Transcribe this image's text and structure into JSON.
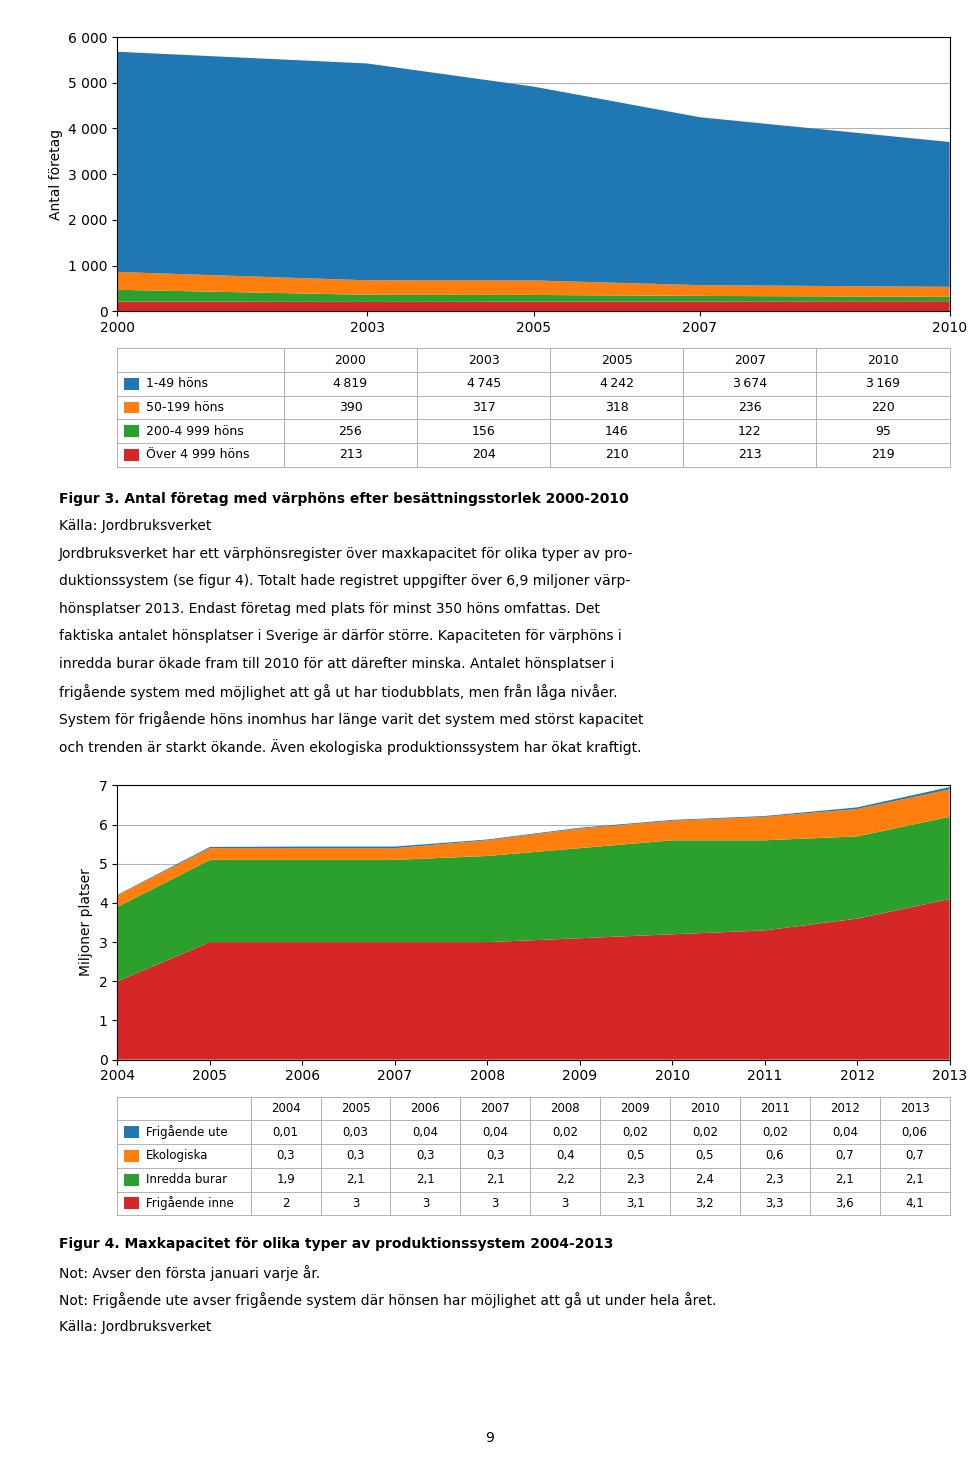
{
  "chart_data": [
    {
      "type": "area",
      "stacked": true,
      "grid": true,
      "data_labels": true,
      "y_label": "Antal företag",
      "x": [
        2000,
        2003,
        2005,
        2007,
        2010
      ],
      "xlim": [
        2000,
        2010
      ],
      "xticks": [
        2000,
        2003,
        2005,
        2007,
        2010
      ],
      "ylim": [
        0,
        6000
      ],
      "yticks": [
        0,
        {
          "value": 1000,
          "label": "1 000"
        },
        {
          "value": 2000,
          "label": "2 000"
        },
        {
          "value": 3000,
          "label": "3 000"
        },
        {
          "value": 4000,
          "label": "4 000"
        },
        {
          "value": 5000,
          "label": "5 000"
        },
        {
          "value": 6000,
          "label": "6 000"
        }
      ],
      "series": [
        {
          "name": "1-49 höns",
          "values": [
            4819,
            4745,
            4242,
            3674,
            3169
          ],
          "value_labels": [
            "4 819",
            "4 745",
            "4 242",
            "3 674",
            "3 169"
          ]
        },
        {
          "name": "50-199 höns",
          "values": [
            390,
            317,
            318,
            236,
            220
          ]
        },
        {
          "name": "200-4 999 höns",
          "values": [
            256,
            156,
            146,
            122,
            95
          ]
        },
        {
          "name": "Över 4 999 höns",
          "values": [
            213,
            204,
            210,
            213,
            219
          ]
        }
      ],
      "annotations": [
        "Figur 3. Antal företag med värphöns efter besättningsstorlek 2000-2010",
        "Källa: Jordbruksverket",
        "Jordbruksverket har ett värphönsregister över maxkapacitet för olika typer av pro-",
        "duktionssystem (se figur 4). Totalt hade registret uppgifter över 6,9 miljoner värp-",
        "hönsplatser 2013. Endast företag med plats för minst 350 höns omfattas. Det",
        "faktiska antalet hönsplatser i Sverige är därför större. Kapaciteten för värphöns i",
        "inredda burar ökade fram till 2010 för att därefter minska. Antalet hönsplatser i",
        "frigående system med möjlighet att gå ut har tiodubblats, men från låga nivåer.",
        "System för frigående höns inomhus har länge varit det system med störst kapacitet",
        "och trenden är starkt ökande. Även ekologiska produktionssystem har ökat kraftigt."
      ]
    },
    {
      "type": "area",
      "stacked": true,
      "grid": true,
      "data_labels": true,
      "y_label": "Miljoner platser",
      "x": [
        2004,
        2005,
        2006,
        2007,
        2008,
        2009,
        2010,
        2011,
        2012,
        2013
      ],
      "xlim": [
        2004,
        2013
      ],
      "xticks": [
        2004,
        2005,
        2006,
        2007,
        2008,
        2009,
        2010,
        2011,
        2012,
        2013
      ],
      "ylim": [
        0,
        7
      ],
      "yticks": [
        0,
        1,
        2,
        3,
        4,
        5,
        6,
        7
      ],
      "series": [
        {
          "name": "Frigående ute",
          "values": [
            0.01,
            0.03,
            0.04,
            0.04,
            0.02,
            0.02,
            0.02,
            0.02,
            0.04,
            0.06
          ],
          "value_labels": [
            "0,01",
            "0,03",
            "0,04",
            "0,04",
            "0,02",
            "0,02",
            "0,02",
            "0,02",
            "0,04",
            "0,06"
          ]
        },
        {
          "name": "Ekologiska",
          "values": [
            0.3,
            0.3,
            0.3,
            0.3,
            0.4,
            0.5,
            0.5,
            0.6,
            0.7,
            0.7
          ],
          "value_labels": [
            "0,3",
            "0,3",
            "0,3",
            "0,3",
            "0,4",
            "0,5",
            "0,5",
            "0,6",
            "0,7",
            "0,7"
          ]
        },
        {
          "name": "Inredda burar",
          "values": [
            1.9,
            2.1,
            2.1,
            2.1,
            2.2,
            2.3,
            2.4,
            2.3,
            2.1,
            2.1
          ],
          "value_labels": [
            "1,9",
            "2,1",
            "2,1",
            "2,1",
            "2,2",
            "2,3",
            "2,4",
            "2,3",
            "2,1",
            "2,1"
          ]
        },
        {
          "name": "Frigående inne",
          "values": [
            2.0,
            3.0,
            3.0,
            3.0,
            3.0,
            3.1,
            3.2,
            3.3,
            3.6,
            4.1
          ],
          "value_labels": [
            "2",
            "3",
            "3",
            "3",
            "3",
            "3,1",
            "3,2",
            "3,3",
            "3,6",
            "4,1"
          ]
        }
      ],
      "annotations": [
        "Figur 4. Maxkapacitet för olika typer av produktionssystem 2004-2013",
        "Not: Avser den första januari varje år.",
        "Not: Frigående ute avser frigående system där hönsen har möjlighet att gå ut under hela året.",
        "Källa: Jordbruksverket",
        "9"
      ]
    }
  ]
}
